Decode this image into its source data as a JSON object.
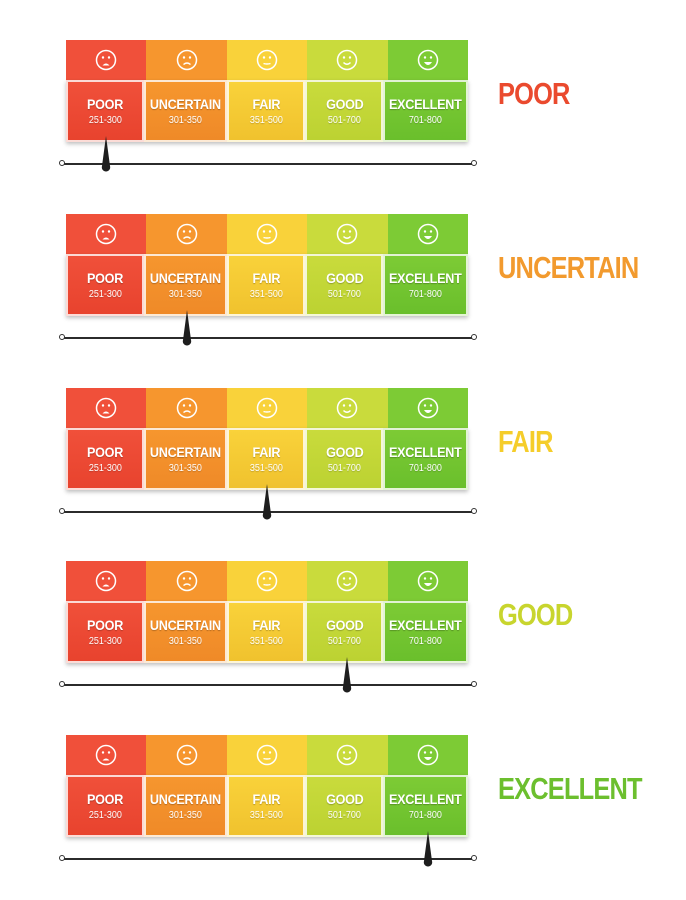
{
  "categories": [
    {
      "name": "POOR",
      "range": "251-300",
      "face": "sad-open-face-icon",
      "top": "#f0503a",
      "bottom": "#e8432e"
    },
    {
      "name": "UNCERTAIN",
      "range": "301-350",
      "face": "frown-face-icon",
      "top": "#f6962e",
      "bottom": "#ef8a28"
    },
    {
      "name": "FAIR",
      "range": "351-500",
      "face": "neutral-face-icon",
      "top": "#f9d23a",
      "bottom": "#f0c22e"
    },
    {
      "name": "GOOD",
      "range": "501-700",
      "face": "smile-face-icon",
      "top": "#c9db3c",
      "bottom": "#bcd232"
    },
    {
      "name": "EXCELLENT",
      "range": "701-800",
      "face": "happy-open-face-icon",
      "top": "#7dcb35",
      "bottom": "#6abf2c"
    }
  ],
  "gauges": [
    {
      "label": "POOR",
      "label_color": "#ea4a2e",
      "pointer_category": 0,
      "pointer_fraction": 0.1
    },
    {
      "label": "UNCERTAIN",
      "label_color": "#f29a2e",
      "pointer_category": 1,
      "pointer_fraction": 0.3
    },
    {
      "label": "FAIR",
      "label_color": "#f5cd2a",
      "pointer_category": 2,
      "pointer_fraction": 0.5
    },
    {
      "label": "GOOD",
      "label_color": "#c8d52e",
      "pointer_category": 3,
      "pointer_fraction": 0.7
    },
    {
      "label": "EXCELLENT",
      "label_color": "#6cbf2e",
      "pointer_category": 4,
      "pointer_fraction": 0.9
    }
  ]
}
